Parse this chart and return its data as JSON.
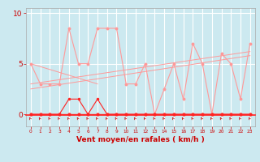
{
  "xlabel": "Vent moyen/en rafales ( km/h )",
  "bg_color": "#cce9f0",
  "grid_color": "#ffffff",
  "line_color": "#ff2222",
  "light_color": "#ff9999",
  "xlim": [
    -0.5,
    23.5
  ],
  "ylim": [
    -1.2,
    10.5
  ],
  "yticks": [
    0,
    5,
    10
  ],
  "xticks": [
    0,
    1,
    2,
    3,
    4,
    5,
    6,
    7,
    8,
    9,
    10,
    11,
    12,
    13,
    14,
    15,
    16,
    17,
    18,
    19,
    20,
    21,
    22,
    23
  ],
  "x_data": [
    0,
    1,
    2,
    3,
    4,
    5,
    6,
    7,
    8,
    9,
    10,
    11,
    12,
    13,
    14,
    15,
    16,
    17,
    18,
    19,
    20,
    21,
    22,
    23
  ],
  "y_main": [
    5,
    3,
    3,
    3,
    8.5,
    5,
    5,
    8.5,
    8.5,
    8.5,
    3,
    3,
    5,
    0,
    2.5,
    5,
    1.5,
    7,
    5,
    0,
    6,
    5,
    1.5,
    7
  ],
  "y_secondary": [
    0,
    0,
    0,
    0,
    1.5,
    1.5,
    0,
    1.5,
    0,
    0,
    0,
    0,
    0,
    0,
    0,
    0,
    0,
    0,
    0,
    0,
    0,
    0,
    0,
    0
  ],
  "y_zero": [
    0,
    0,
    0,
    0,
    0,
    0,
    0,
    0,
    0,
    0,
    0,
    0,
    0,
    0,
    0,
    0,
    0,
    0,
    0,
    0,
    0,
    0,
    0,
    0
  ],
  "reg1": [
    0,
    3.0,
    23,
    6.2
  ],
  "reg2": [
    0,
    2.5,
    23,
    5.8
  ],
  "reg3": [
    0,
    5.0,
    7,
    3.0
  ],
  "font_color": "#cc0000",
  "label_fontsize": 5.0,
  "xlabel_fontsize": 6.5,
  "ytick_fontsize": 6.5,
  "xtick_fontsize": 4.2
}
